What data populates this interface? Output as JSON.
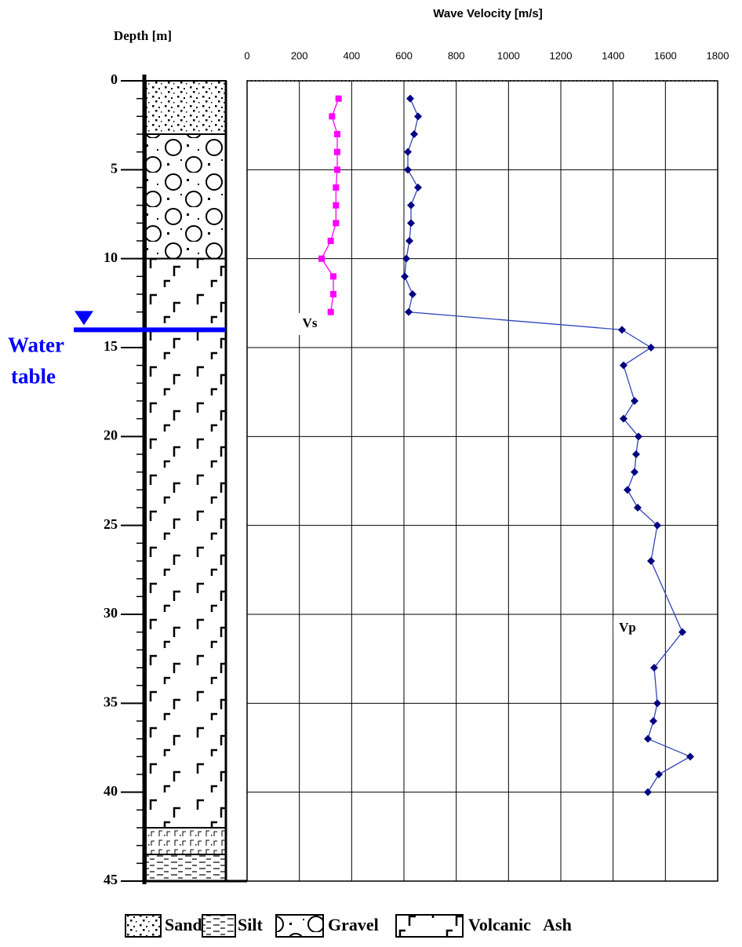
{
  "chart_data": {
    "type": "line",
    "x_label": "Wave Velocity [m/s]",
    "y_label": "Depth [m]",
    "xlim": [
      0,
      1800
    ],
    "xticks": [
      0,
      200,
      400,
      600,
      800,
      1000,
      1200,
      1400,
      1600,
      1800
    ],
    "ylim": [
      0,
      45
    ],
    "yticks": [
      0,
      5,
      10,
      15,
      20,
      25,
      30,
      35,
      40,
      45
    ],
    "yminorticks": [
      0,
      1,
      2,
      3,
      4,
      5,
      6,
      7,
      8,
      9,
      10,
      11,
      12,
      13,
      14,
      15,
      16,
      17,
      18,
      19,
      20,
      21,
      22,
      23,
      24,
      25,
      26,
      27,
      28,
      29,
      30,
      31,
      32,
      33,
      34,
      35,
      36,
      37,
      38,
      39,
      40,
      41,
      42,
      43,
      44,
      45
    ],
    "grid": true,
    "series": [
      {
        "name": "Vs",
        "color": "#ff00ff",
        "marker": "square",
        "x": [
          350,
          325,
          345,
          345,
          345,
          340,
          340,
          340,
          320,
          285,
          330,
          330,
          320
        ],
        "y": [
          1,
          2,
          3,
          4,
          5,
          6,
          7,
          8,
          9,
          10,
          11,
          12,
          13
        ]
      },
      {
        "name": "Vp",
        "color": "#000080",
        "marker": "diamond",
        "x": [
          624,
          654,
          639,
          615,
          615,
          654,
          627,
          627,
          621,
          609,
          603,
          633,
          618,
          1434,
          1545,
          1440,
          1482,
          1440,
          1497,
          1488,
          1482,
          1455,
          1494,
          1569,
          1545,
          1665,
          1557,
          1569,
          1554,
          1533,
          1695,
          1575,
          1533
        ],
        "y": [
          1,
          2,
          3,
          4,
          5,
          6,
          7,
          8,
          9,
          10,
          11,
          12,
          13,
          14,
          15,
          16,
          18,
          19,
          20,
          21,
          22,
          23,
          24,
          25,
          27,
          31,
          33,
          35,
          36,
          37,
          38,
          39,
          40
        ]
      }
    ],
    "layers": [
      {
        "soil": "Sand",
        "top": 0,
        "bottom": 3
      },
      {
        "soil": "Gravel",
        "top": 3,
        "bottom": 10
      },
      {
        "soil": "Volcanic Ash",
        "top": 10,
        "bottom": 42
      },
      {
        "soil": "Volcanic Ash",
        "top": 42,
        "bottom": 43.5
      },
      {
        "soil": "Silt",
        "top": 43.5,
        "bottom": 45
      }
    ],
    "legend": [
      "Sand",
      "Silt",
      "Gravel",
      "Volcanic   Ash"
    ],
    "water_table": {
      "label_lines": [
        "Water",
        "table"
      ],
      "depth": 14,
      "color": "#0000ff"
    }
  }
}
